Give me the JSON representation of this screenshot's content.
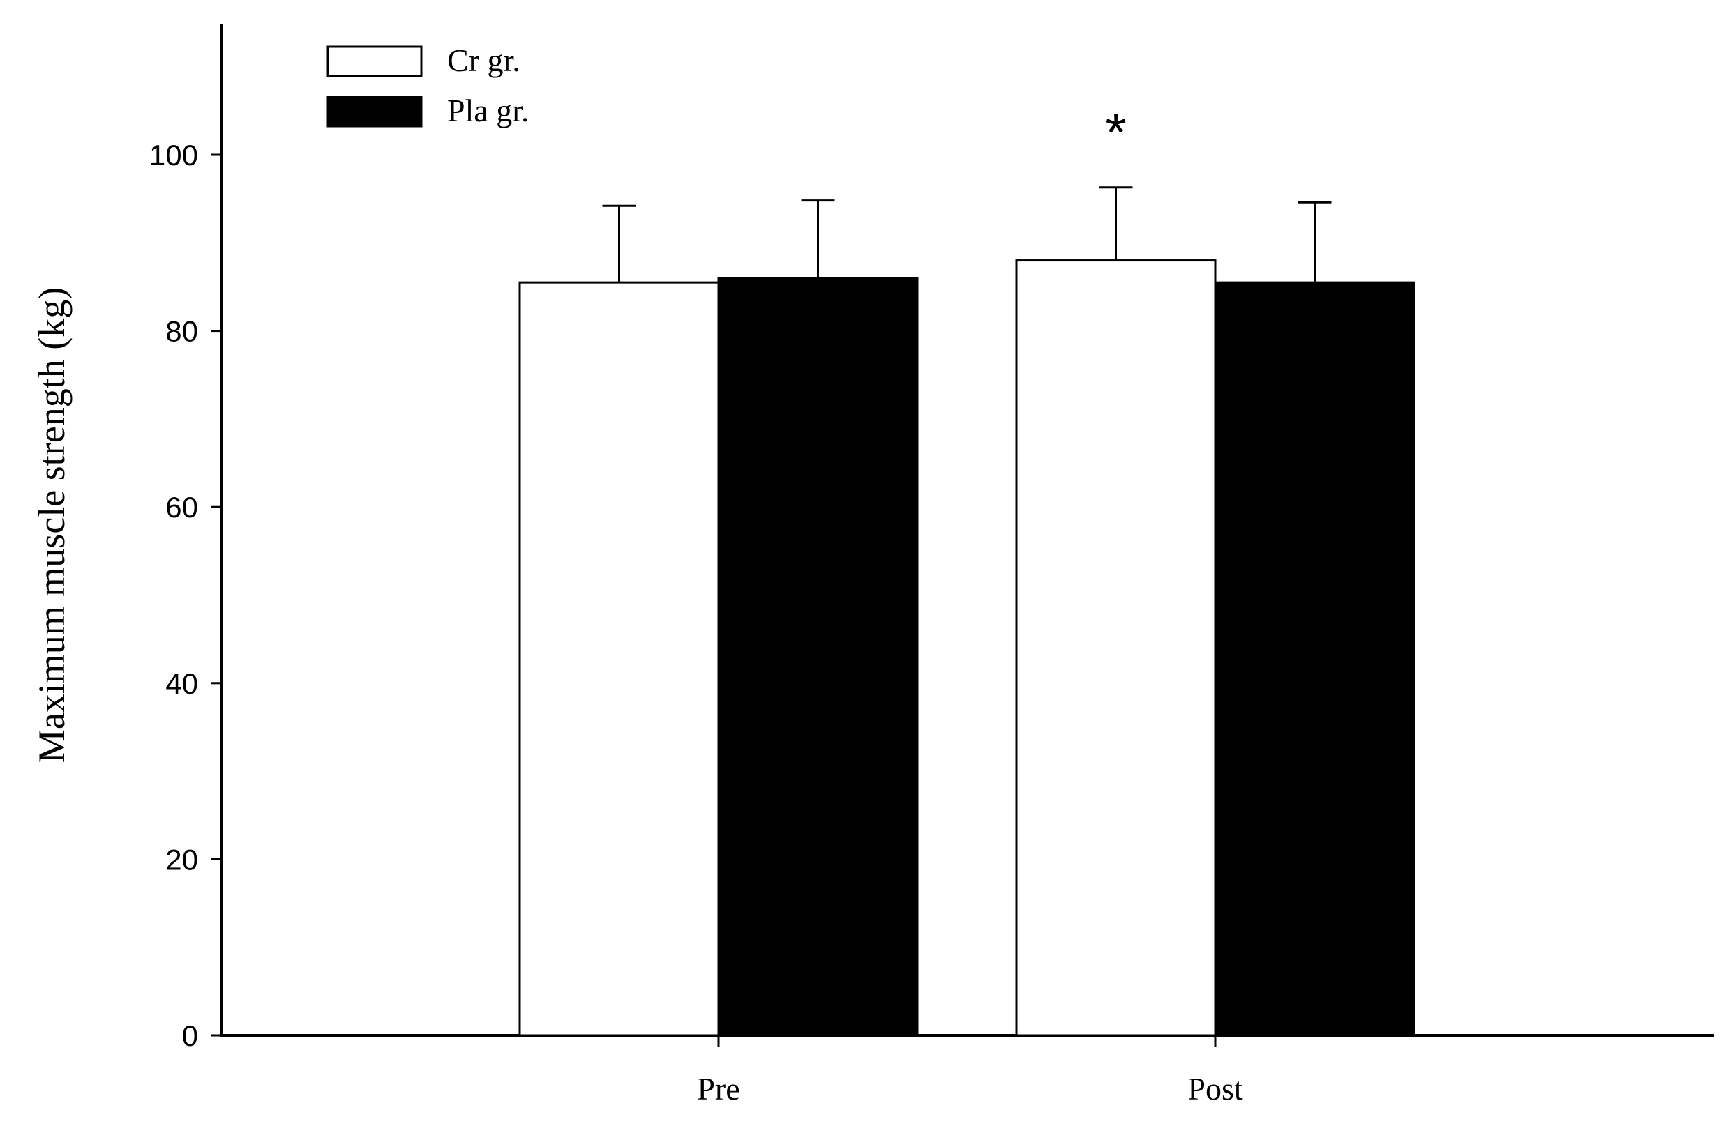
{
  "chart_data": {
    "type": "bar",
    "categories": [
      "Pre",
      "Post"
    ],
    "series": [
      {
        "name": "Cr gr.",
        "values": [
          85.5,
          88.0
        ],
        "errors": [
          8.7,
          8.3
        ],
        "color": "#ffffff"
      },
      {
        "name": "Pla gr.",
        "values": [
          86.0,
          85.5
        ],
        "errors": [
          8.8,
          9.1
        ],
        "color": "#000000"
      }
    ],
    "ylabel": "Maximum muscle strength (kg)",
    "xlabel": "",
    "ylim": [
      0,
      115
    ],
    "yticks": [
      0,
      20,
      40,
      60,
      80,
      100
    ],
    "legend_position": "top-left",
    "grid": false,
    "annotations": [
      {
        "text": "*",
        "category": "Post",
        "series": "Cr gr."
      }
    ]
  }
}
